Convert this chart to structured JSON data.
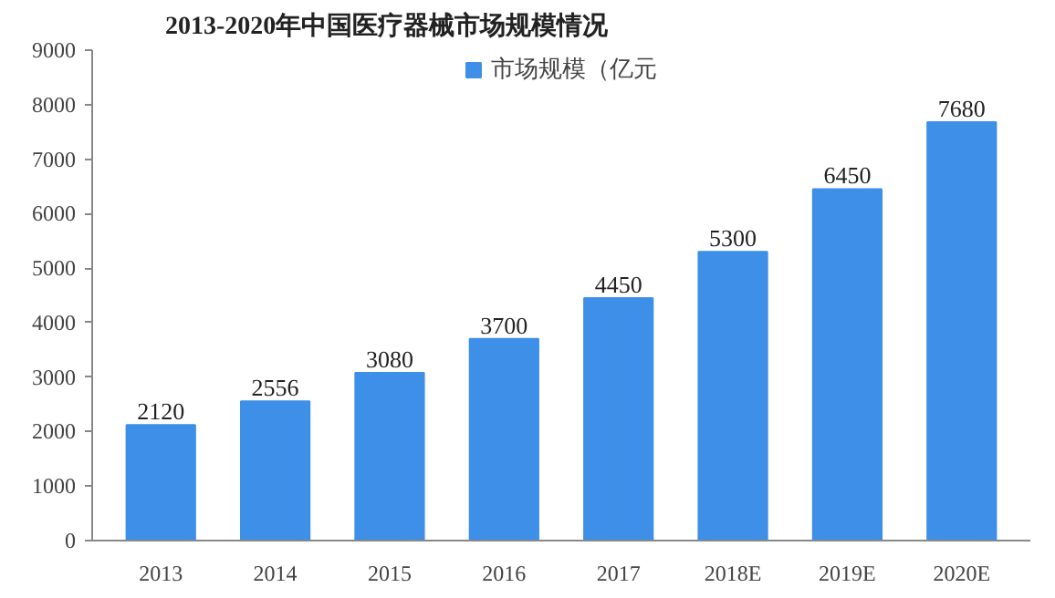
{
  "chart_data": {
    "type": "bar",
    "title": "2013-2020年中国医疗器械市场规模情况",
    "categories": [
      "2013",
      "2014",
      "2015",
      "2016",
      "2017",
      "2018E",
      "2019E",
      "2020E"
    ],
    "series": [
      {
        "name": "市场规模（亿元",
        "color": "#3d8fe8",
        "values": [
          2120,
          2556,
          3080,
          3700,
          4450,
          5300,
          6450,
          7680
        ]
      }
    ],
    "ylim": [
      0,
      9000
    ],
    "yticks": [
      0,
      1000,
      2000,
      3000,
      4000,
      5000,
      6000,
      7000,
      8000,
      9000
    ],
    "grid": false,
    "legend": "top",
    "data_labels": true
  }
}
